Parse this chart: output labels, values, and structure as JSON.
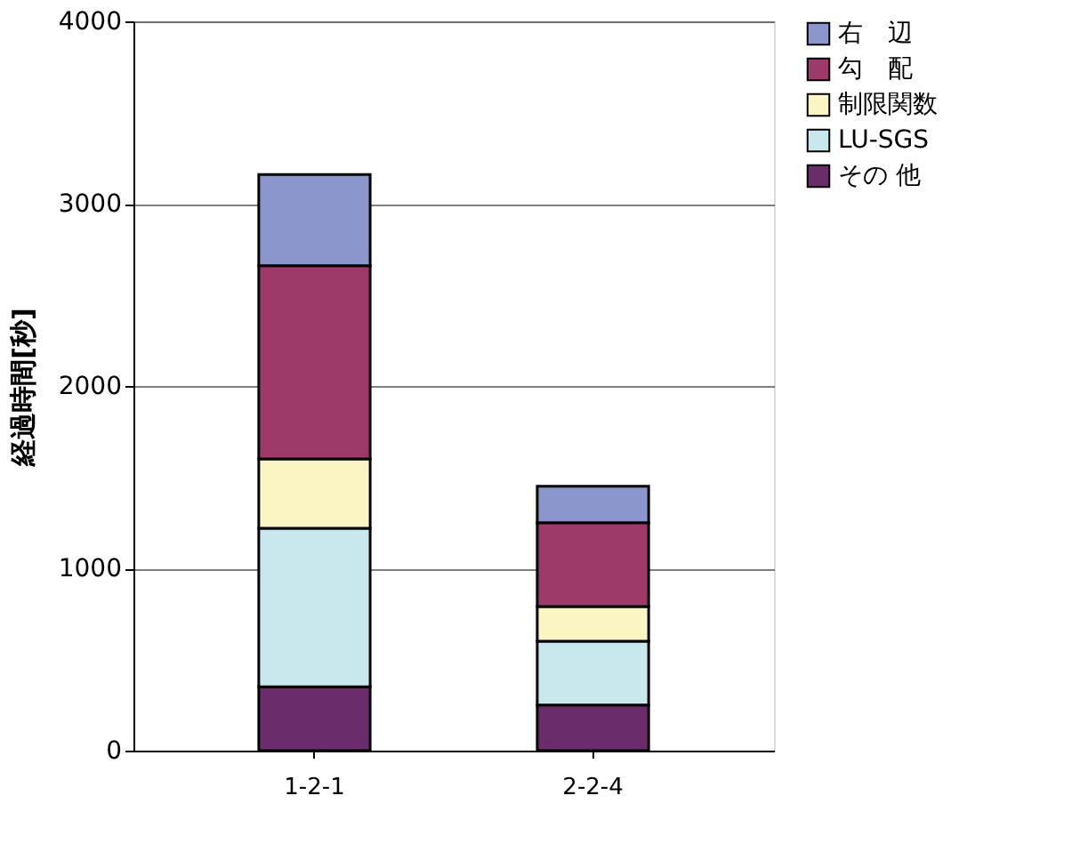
{
  "chart_data": {
    "type": "bar",
    "stacked": true,
    "categories": [
      "1-2-1",
      "2-2-4"
    ],
    "ylabel": "経過時間[秒]",
    "ylim": [
      0,
      4000
    ],
    "yticks": [
      0,
      1000,
      2000,
      3000,
      4000
    ],
    "grid": "y",
    "legend": "right",
    "series": [
      {
        "name": "その 他",
        "color": "#6b2c6b",
        "values": [
          350,
          250
        ]
      },
      {
        "name": "LU-SGS",
        "color": "#c9e8ee",
        "values": [
          870,
          350
        ]
      },
      {
        "name": "制限関数",
        "color": "#fbf5c4",
        "values": [
          380,
          190
        ]
      },
      {
        "name": "勾　配",
        "color": "#9e3a6a",
        "values": [
          1060,
          460
        ]
      },
      {
        "name": "右　辺",
        "color": "#8b96cc",
        "values": [
          500,
          200
        ]
      }
    ]
  }
}
